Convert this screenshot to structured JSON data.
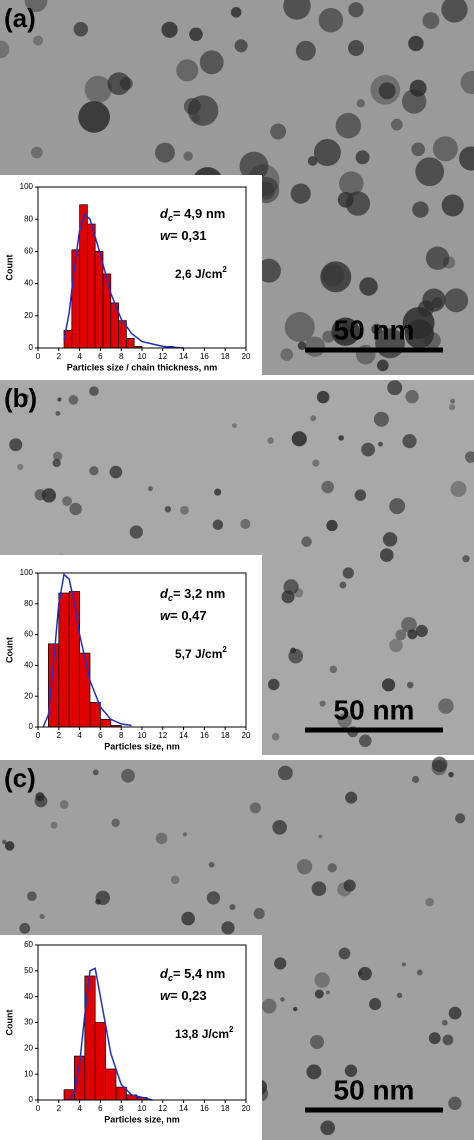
{
  "chart_data": [
    {
      "type": "histogram",
      "panel": "(a)",
      "xlabel": "Particles size / chain thickness, nm",
      "ylabel": "Count",
      "bins": [
        2.5,
        3.25,
        4,
        4.75,
        5.5,
        6.25,
        7,
        7.75,
        8.5,
        9.25,
        10,
        10.75,
        11.5,
        12.25,
        13
      ],
      "values": [
        11,
        61,
        89,
        77,
        60,
        46,
        28,
        17,
        6,
        1,
        0,
        0,
        0,
        1
      ],
      "color": "#e00000",
      "fit_x": [
        2.5,
        3,
        3.5,
        4,
        4.5,
        5,
        6,
        7,
        8,
        9,
        10,
        12,
        14
      ],
      "fit_values": [
        5,
        22,
        50,
        73,
        83,
        80,
        58,
        34,
        18,
        9,
        4,
        1,
        0
      ],
      "fit_color": "#1f2fd0",
      "xlim": [
        0,
        20
      ],
      "xticks": [
        0,
        2,
        4,
        6,
        8,
        10,
        12,
        14,
        16,
        18,
        20
      ],
      "ylim": [
        0,
        100
      ],
      "yticks": [
        0,
        20,
        40,
        60,
        80,
        100
      ],
      "diameter": [
        "d",
        "c",
        "= 4,9 nm"
      ],
      "width": [
        "w",
        "= 0,31"
      ],
      "fluence": [
        "2,6 J/cm",
        "2"
      ],
      "scale_bar": "50 nm"
    },
    {
      "type": "histogram",
      "panel": "(b)",
      "xlabel": "Particles size, nm",
      "ylabel": "Count",
      "bins": [
        1,
        2,
        3,
        4,
        5,
        6,
        7,
        8
      ],
      "values": [
        54,
        87,
        88,
        48,
        16,
        5,
        1
      ],
      "color": "#e00000",
      "fit_x": [
        0.5,
        1,
        1.5,
        2,
        2.5,
        3,
        3.5,
        4,
        5,
        6,
        7,
        8,
        9
      ],
      "fit_values": [
        0,
        8,
        42,
        80,
        99,
        96,
        80,
        60,
        30,
        13,
        5,
        2,
        1
      ],
      "fit_color": "#1f2fd0",
      "xlim": [
        0,
        20
      ],
      "xticks": [
        0,
        2,
        4,
        6,
        8,
        10,
        12,
        14,
        16,
        18,
        20
      ],
      "ylim": [
        0,
        100
      ],
      "yticks": [
        0,
        20,
        40,
        60,
        80,
        100
      ],
      "diameter": [
        "d",
        "c",
        "= 3,2 nm"
      ],
      "width": [
        "w",
        "= 0,47"
      ],
      "fluence": [
        "5,7 J/cm",
        "2"
      ],
      "scale_bar": "50 nm"
    },
    {
      "type": "histogram",
      "panel": "(c)",
      "xlabel": "Particles size, nm",
      "ylabel": "Count",
      "bins": [
        2.5,
        3.5,
        4.5,
        5.5,
        6.5,
        7.5,
        8.5,
        9.5,
        10.5
      ],
      "values": [
        4,
        17,
        48,
        30,
        12,
        5,
        2,
        1
      ],
      "color": "#e00000",
      "fit_x": [
        3,
        3.5,
        4,
        4.5,
        5,
        5.5,
        6,
        7,
        8,
        9,
        10,
        11
      ],
      "fit_values": [
        0,
        3,
        14,
        33,
        50,
        51,
        40,
        18,
        6,
        2,
        1,
        0
      ],
      "fit_color": "#1f2fd0",
      "xlim": [
        0,
        20
      ],
      "xticks": [
        0,
        2,
        4,
        6,
        8,
        10,
        12,
        14,
        16,
        18,
        20
      ],
      "ylim": [
        0,
        60
      ],
      "yticks": [
        0,
        10,
        20,
        30,
        40,
        50,
        60
      ],
      "diameter": [
        "d",
        "c",
        "= 5,4 nm"
      ],
      "width": [
        "w",
        "= 0,23"
      ],
      "fluence": [
        "13,8 J/cm",
        "2"
      ],
      "scale_bar": "50 nm"
    }
  ]
}
